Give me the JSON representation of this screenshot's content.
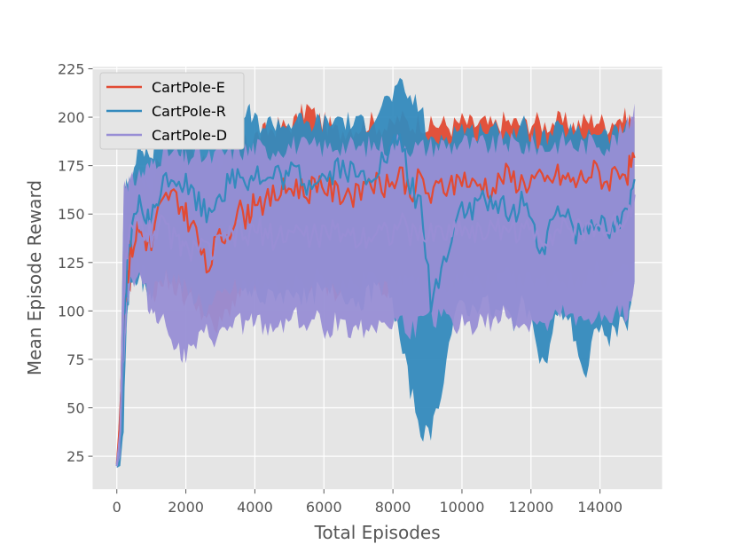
{
  "chart_data": {
    "type": "line",
    "title": "",
    "xlabel": "Total Episodes",
    "ylabel": "Mean Episode Reward",
    "xlim": [
      -700,
      15800
    ],
    "ylim": [
      8,
      226
    ],
    "xticks": [
      0,
      2000,
      4000,
      6000,
      8000,
      10000,
      12000,
      14000
    ],
    "yticks": [
      25,
      50,
      75,
      100,
      125,
      150,
      175,
      200,
      225
    ],
    "xtick_labels": [
      "0",
      "2000",
      "4000",
      "6000",
      "8000",
      "10000",
      "12000",
      "14000"
    ],
    "ytick_labels": [
      "25",
      "50",
      "75",
      "100",
      "125",
      "150",
      "175",
      "200",
      "225"
    ],
    "grid": true,
    "legend_position": "upper-left",
    "background": "#e5e5e5",
    "series": [
      {
        "name": "CartPole-E",
        "color": "#e24a33",
        "x": [
          0,
          100,
          200,
          300,
          400,
          600,
          800,
          1000,
          1200,
          1500,
          1800,
          2000,
          2300,
          2600,
          2900,
          3200,
          3500,
          3800,
          4000,
          4300,
          4600,
          4900,
          5200,
          5500,
          5800,
          6100,
          6400,
          6700,
          7000,
          7300,
          7600,
          7900,
          8200,
          8500,
          8800,
          9100,
          9400,
          9700,
          10000,
          10300,
          10600,
          10900,
          11200,
          11500,
          11800,
          12100,
          12400,
          12700,
          13000,
          13300,
          13600,
          13900,
          14200,
          14500,
          14800,
          15000
        ],
        "mean": [
          21,
          45,
          100,
          118,
          130,
          142,
          138,
          133,
          150,
          160,
          157,
          150,
          140,
          120,
          135,
          140,
          152,
          148,
          160,
          155,
          160,
          162,
          165,
          160,
          168,
          163,
          160,
          162,
          158,
          170,
          165,
          163,
          172,
          162,
          168,
          158,
          165,
          163,
          170,
          164,
          166,
          162,
          170,
          168,
          166,
          168,
          165,
          170,
          168,
          166,
          170,
          172,
          166,
          174,
          172,
          179
        ],
        "lower": [
          20,
          30,
          80,
          108,
          115,
          125,
          118,
          108,
          112,
          116,
          110,
          106,
          105,
          95,
          90,
          100,
          108,
          112,
          112,
          110,
          112,
          108,
          115,
          112,
          118,
          112,
          110,
          115,
          112,
          118,
          115,
          110,
          120,
          112,
          115,
          108,
          115,
          112,
          118,
          114,
          116,
          112,
          118,
          115,
          114,
          118,
          115,
          118,
          116,
          114,
          118,
          120,
          115,
          120,
          118,
          125
        ],
        "upper": [
          22,
          60,
          140,
          155,
          162,
          170,
          168,
          165,
          178,
          185,
          186,
          185,
          183,
          175,
          178,
          180,
          188,
          185,
          190,
          192,
          195,
          195,
          198,
          205,
          200,
          196,
          192,
          195,
          195,
          198,
          196,
          194,
          200,
          196,
          198,
          195,
          197,
          195,
          198,
          196,
          197,
          195,
          198,
          197,
          196,
          198,
          196,
          198,
          197,
          196,
          198,
          199,
          196,
          200,
          199,
          200
        ]
      },
      {
        "name": "CartPole-R",
        "color": "#348abd",
        "x": [
          0,
          100,
          200,
          300,
          400,
          600,
          800,
          1000,
          1200,
          1500,
          1800,
          2000,
          2300,
          2600,
          2900,
          3200,
          3500,
          3800,
          4000,
          4300,
          4600,
          4900,
          5200,
          5500,
          5800,
          6100,
          6400,
          6700,
          7000,
          7300,
          7600,
          7900,
          8200,
          8500,
          8800,
          9100,
          9400,
          9700,
          10000,
          10300,
          10600,
          10900,
          11200,
          11500,
          11800,
          12100,
          12400,
          12700,
          13000,
          13300,
          13600,
          13900,
          14200,
          14500,
          14800,
          15000
        ],
        "mean": [
          20,
          35,
          95,
          120,
          135,
          155,
          150,
          145,
          160,
          170,
          168,
          165,
          158,
          150,
          160,
          165,
          170,
          168,
          172,
          165,
          170,
          168,
          172,
          165,
          170,
          168,
          175,
          172,
          168,
          170,
          175,
          180,
          190,
          165,
          155,
          105,
          120,
          140,
          155,
          150,
          160,
          150,
          155,
          150,
          160,
          140,
          130,
          150,
          155,
          140,
          145,
          150,
          140,
          145,
          150,
          168
        ],
        "lower": [
          19,
          20,
          40,
          100,
          110,
          118,
          112,
          108,
          115,
          120,
          115,
          110,
          108,
          100,
          105,
          110,
          112,
          108,
          110,
          105,
          110,
          108,
          112,
          105,
          110,
          108,
          112,
          108,
          105,
          108,
          110,
          112,
          85,
          60,
          40,
          33,
          60,
          90,
          105,
          100,
          108,
          98,
          100,
          95,
          105,
          85,
          70,
          95,
          100,
          85,
          62,
          95,
          85,
          90,
          95,
          115
        ],
        "upper": [
          21,
          50,
          160,
          165,
          170,
          185,
          183,
          180,
          190,
          195,
          195,
          195,
          192,
          190,
          195,
          198,
          200,
          202,
          198,
          196,
          198,
          196,
          199,
          195,
          198,
          196,
          200,
          198,
          196,
          198,
          205,
          210,
          215,
          210,
          205,
          185,
          190,
          192,
          195,
          192,
          195,
          192,
          194,
          192,
          195,
          190,
          188,
          192,
          194,
          190,
          192,
          194,
          190,
          192,
          194,
          198
        ]
      },
      {
        "name": "CartPole-D",
        "color": "#988ed5",
        "x": [
          0,
          100,
          200,
          300,
          400,
          600,
          800,
          1000,
          1200,
          1500,
          1800,
          2000,
          2300,
          2600,
          2900,
          3200,
          3500,
          3800,
          4000,
          4300,
          4600,
          4900,
          5200,
          5500,
          5800,
          6100,
          6400,
          6700,
          7000,
          7300,
          7600,
          7900,
          8200,
          8500,
          8800,
          9100,
          9400,
          9700,
          10000,
          10300,
          10600,
          10900,
          11200,
          11500,
          11800,
          12100,
          12400,
          12700,
          13000,
          13300,
          13600,
          13900,
          14200,
          14500,
          14800,
          15000
        ],
        "mean": [
          20,
          38,
          110,
          130,
          140,
          145,
          143,
          140,
          145,
          140,
          135,
          130,
          135,
          130,
          132,
          138,
          140,
          138,
          142,
          140,
          138,
          140,
          142,
          138,
          140,
          138,
          142,
          140,
          138,
          140,
          142,
          140,
          145,
          140,
          138,
          140,
          142,
          140,
          145,
          140,
          142,
          140,
          145,
          142,
          140,
          142,
          138,
          142,
          145,
          140,
          142,
          145,
          140,
          145,
          150,
          160
        ],
        "lower": [
          19,
          25,
          70,
          105,
          115,
          118,
          112,
          100,
          98,
          90,
          80,
          76,
          82,
          88,
          85,
          90,
          95,
          92,
          95,
          90,
          92,
          95,
          98,
          92,
          95,
          90,
          95,
          92,
          90,
          92,
          95,
          92,
          95,
          90,
          92,
          95,
          98,
          92,
          95,
          92,
          95,
          92,
          98,
          95,
          92,
          95,
          90,
          95,
          98,
          92,
          95,
          98,
          92,
          98,
          100,
          115
        ],
        "upper": [
          21,
          55,
          165,
          168,
          165,
          170,
          172,
          175,
          180,
          182,
          180,
          178,
          182,
          178,
          180,
          182,
          184,
          182,
          185,
          182,
          184,
          185,
          186,
          184,
          185,
          184,
          186,
          185,
          184,
          185,
          186,
          185,
          188,
          185,
          184,
          185,
          186,
          185,
          188,
          185,
          186,
          185,
          188,
          186,
          185,
          186,
          184,
          186,
          188,
          185,
          186,
          188,
          185,
          190,
          195,
          207
        ]
      }
    ]
  }
}
